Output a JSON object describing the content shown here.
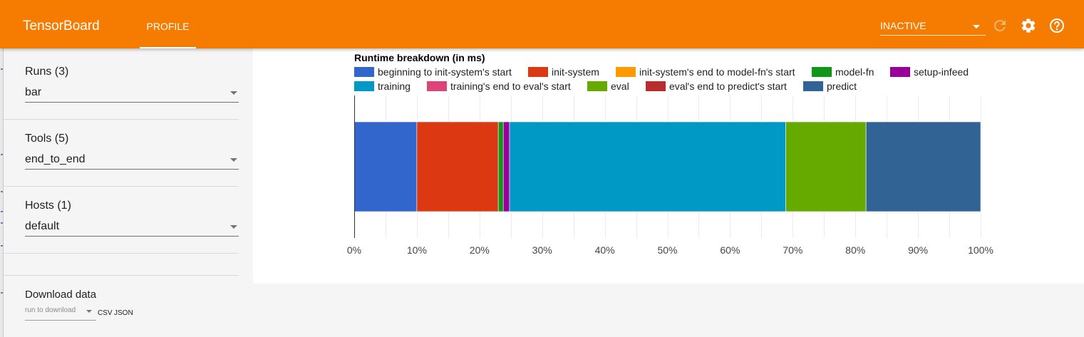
{
  "app": {
    "title": "TensorBoard",
    "tabs": [
      {
        "label": "PROFILE",
        "active": true
      }
    ],
    "run_status": "INACTIVE",
    "accent": "#f57c00"
  },
  "sidebar": {
    "runs": {
      "title": "Runs (3)",
      "value": "bar"
    },
    "tools": {
      "title": "Tools (5)",
      "value": "end_to_end"
    },
    "hosts": {
      "title": "Hosts (1)",
      "value": "default"
    },
    "download": {
      "title": "Download data",
      "placeholder": "run to download",
      "csv": "CSV",
      "json": "JSON"
    }
  },
  "icons": {
    "refresh": "refresh-icon",
    "settings": "gear-icon",
    "help": "help-icon"
  },
  "chart_data": {
    "type": "bar",
    "orientation": "horizontal-stacked-100",
    "title": "Runtime breakdown (in ms)",
    "xlim": [
      0,
      100
    ],
    "x_ticks": [
      "0%",
      "10%",
      "20%",
      "30%",
      "40%",
      "50%",
      "60%",
      "70%",
      "80%",
      "90%",
      "100%"
    ],
    "grid": true,
    "legend_position": "top",
    "series": [
      {
        "name": "beginning to init-system's start",
        "value": 10.0,
        "color": "#3366cc"
      },
      {
        "name": "init-system",
        "value": 13.0,
        "color": "#dc3912"
      },
      {
        "name": "init-system's end to model-fn's start",
        "value": 0.0,
        "color": "#ff9900"
      },
      {
        "name": "model-fn",
        "value": 0.8,
        "color": "#109618"
      },
      {
        "name": "setup-infeed",
        "value": 1.0,
        "color": "#990099"
      },
      {
        "name": "training",
        "value": 44.1,
        "color": "#0099c6"
      },
      {
        "name": "training's end to eval's start",
        "value": 0.0,
        "color": "#dd4477"
      },
      {
        "name": "eval",
        "value": 12.8,
        "color": "#66aa00"
      },
      {
        "name": "eval's end to predict's start",
        "value": 0.0,
        "color": "#b82e2e"
      },
      {
        "name": "predict",
        "value": 18.3,
        "color": "#316395"
      }
    ]
  }
}
